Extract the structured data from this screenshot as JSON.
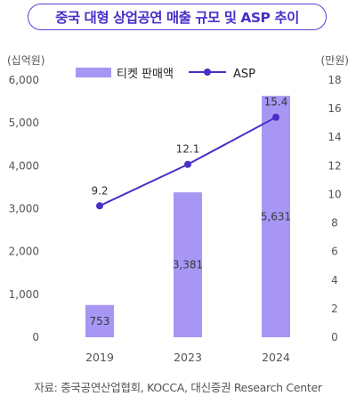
{
  "title": "중국 대형 상업공연 매출 규모 및 ASP 추이",
  "source": "자료: 중국공연산업협회, KOCCA, 대신증권 Research Center",
  "colors": {
    "accent": "#5b3fd8",
    "bar": "#a896f5",
    "line": "#4a2fc7",
    "axis_text": "#555555"
  },
  "chart_data": {
    "type": "bar+line",
    "categories": [
      "2019",
      "2023",
      "2024"
    ],
    "left_unit": "(십억원)",
    "right_unit": "(만원)",
    "ylim_left": [
      0,
      6000
    ],
    "ylim_right": [
      0,
      18
    ],
    "left_ticks": [
      "0",
      "1,000",
      "2,000",
      "3,000",
      "4,000",
      "5,000",
      "6,000"
    ],
    "right_ticks": [
      "0",
      "2",
      "4",
      "6",
      "8",
      "10",
      "12",
      "14",
      "16",
      "18"
    ],
    "series": [
      {
        "name": "티켓 판매액",
        "type": "bar",
        "axis": "left",
        "values": [
          753,
          3381,
          5631
        ],
        "labels": [
          "753",
          "3,381",
          "5,631"
        ]
      },
      {
        "name": "ASP",
        "type": "line",
        "axis": "right",
        "values": [
          9.2,
          12.1,
          15.4
        ],
        "labels": [
          "9.2",
          "12.1",
          "15.4"
        ]
      }
    ],
    "legend_position": "top"
  }
}
